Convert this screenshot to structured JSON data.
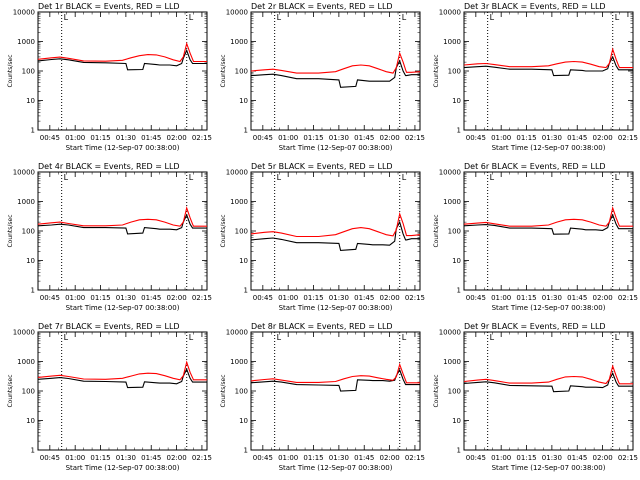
{
  "colors": {
    "events": "#000000",
    "lld": "#ff0000",
    "background": "#ffffff"
  },
  "x_tick_labels": [
    "00:45",
    "01:00",
    "01:15",
    "01:30",
    "01:45",
    "02:00",
    "02:15"
  ],
  "y_tick_labels": [
    "1",
    "10",
    "100",
    "1000",
    "10000"
  ],
  "xlabel": "Start Time (12-Sep-07 00:38:00)",
  "ylabel": "Counts/sec",
  "marker_label": "L",
  "chart_data": [
    {
      "type": "line",
      "title": "Det 1r BLACK = Events, RED = LLD",
      "ylim": [
        1,
        10000
      ],
      "log_y": true,
      "x_unit": "minutes after 00:38:00",
      "xlim": [
        0,
        100
      ],
      "vlines": [
        14,
        88
      ],
      "series": [
        {
          "name": "Events",
          "color": "#000000",
          "x": [
            0,
            8,
            13,
            18,
            27,
            40,
            52,
            53,
            62,
            63,
            70,
            72,
            78,
            82,
            85,
            86,
            88,
            90,
            91.5,
            92,
            95,
            100
          ],
          "y": [
            220,
            245,
            260,
            240,
            195,
            190,
            180,
            110,
            112,
            180,
            165,
            160,
            160,
            150,
            180,
            270,
            500,
            240,
            180,
            180,
            180,
            180
          ]
        },
        {
          "name": "LLD",
          "color": "#ff0000",
          "x": [
            0,
            8,
            13,
            18,
            27,
            40,
            50,
            55,
            60,
            65,
            70,
            75,
            80,
            84,
            86,
            88,
            90,
            91.5,
            92,
            95,
            100
          ],
          "y": [
            250,
            280,
            295,
            270,
            220,
            215,
            230,
            280,
            330,
            360,
            350,
            300,
            240,
            210,
            300,
            850,
            400,
            250,
            210,
            210,
            210
          ]
        }
      ]
    },
    {
      "type": "line",
      "title": "Det 2r BLACK = Events, RED = LLD",
      "ylim": [
        1,
        10000
      ],
      "log_y": true,
      "x_unit": "minutes after 00:38:00",
      "xlim": [
        0,
        100
      ],
      "vlines": [
        14,
        88
      ],
      "series": [
        {
          "name": "Events",
          "color": "#000000",
          "x": [
            0,
            8,
            13,
            18,
            27,
            40,
            52,
            53,
            62,
            63,
            70,
            72,
            78,
            82,
            85,
            86,
            88,
            90,
            91.5,
            92,
            95,
            100
          ],
          "y": [
            70,
            75,
            78,
            70,
            55,
            55,
            50,
            28,
            30,
            50,
            45,
            45,
            45,
            45,
            60,
            130,
            220,
            100,
            70,
            70,
            75,
            75
          ]
        },
        {
          "name": "LLD",
          "color": "#ff0000",
          "x": [
            0,
            8,
            13,
            18,
            27,
            40,
            50,
            55,
            60,
            65,
            70,
            75,
            80,
            84,
            86,
            88,
            90,
            91.5,
            92,
            95,
            100
          ],
          "y": [
            100,
            110,
            115,
            105,
            85,
            85,
            95,
            120,
            150,
            160,
            150,
            120,
            95,
            85,
            130,
            400,
            200,
            110,
            90,
            90,
            95
          ]
        }
      ]
    },
    {
      "type": "line",
      "title": "Det 3r BLACK = Events, RED = LLD",
      "ylim": [
        1,
        10000
      ],
      "log_y": true,
      "x_unit": "minutes after 00:38:00",
      "xlim": [
        0,
        100
      ],
      "vlines": [
        14,
        88
      ],
      "series": [
        {
          "name": "Events",
          "color": "#000000",
          "x": [
            0,
            8,
            13,
            18,
            27,
            40,
            52,
            53,
            62,
            63,
            70,
            72,
            78,
            82,
            85,
            86,
            88,
            90,
            91.5,
            92,
            95,
            100
          ],
          "y": [
            130,
            140,
            145,
            135,
            115,
            115,
            110,
            70,
            72,
            110,
            105,
            100,
            100,
            100,
            120,
            180,
            300,
            150,
            110,
            110,
            110,
            110
          ]
        },
        {
          "name": "LLD",
          "color": "#ff0000",
          "x": [
            0,
            8,
            13,
            18,
            27,
            40,
            50,
            55,
            60,
            65,
            70,
            75,
            80,
            84,
            86,
            88,
            90,
            91.5,
            92,
            95,
            100
          ],
          "y": [
            160,
            175,
            180,
            165,
            140,
            140,
            150,
            175,
            200,
            210,
            200,
            170,
            140,
            130,
            180,
            550,
            250,
            150,
            130,
            130,
            130
          ]
        }
      ]
    },
    {
      "type": "line",
      "title": "Det 4r BLACK = Events, RED = LLD",
      "ylim": [
        1,
        10000
      ],
      "log_y": true,
      "x_unit": "minutes after 00:38:00",
      "xlim": [
        0,
        100
      ],
      "vlines": [
        14,
        88
      ],
      "series": [
        {
          "name": "Events",
          "color": "#000000",
          "x": [
            0,
            8,
            13,
            18,
            27,
            40,
            52,
            53,
            62,
            63,
            70,
            72,
            78,
            82,
            85,
            86,
            88,
            90,
            91.5,
            92,
            95,
            100
          ],
          "y": [
            150,
            160,
            170,
            160,
            130,
            130,
            125,
            80,
            85,
            130,
            120,
            115,
            115,
            110,
            130,
            200,
            350,
            170,
            125,
            125,
            125,
            125
          ]
        },
        {
          "name": "LLD",
          "color": "#ff0000",
          "x": [
            0,
            8,
            13,
            18,
            27,
            40,
            50,
            55,
            60,
            65,
            70,
            75,
            80,
            84,
            86,
            88,
            90,
            91.5,
            92,
            95,
            100
          ],
          "y": [
            170,
            190,
            200,
            180,
            150,
            150,
            160,
            200,
            240,
            250,
            240,
            200,
            160,
            145,
            200,
            600,
            280,
            170,
            145,
            145,
            145
          ]
        }
      ]
    },
    {
      "type": "line",
      "title": "Det 5r BLACK = Events, RED = LLD",
      "ylim": [
        1,
        10000
      ],
      "log_y": true,
      "x_unit": "minutes after 00:38:00",
      "xlim": [
        0,
        100
      ],
      "vlines": [
        14,
        88
      ],
      "series": [
        {
          "name": "Events",
          "color": "#000000",
          "x": [
            0,
            8,
            13,
            18,
            27,
            40,
            52,
            53,
            62,
            63,
            70,
            72,
            78,
            82,
            85,
            86,
            88,
            90,
            91.5,
            92,
            95,
            100
          ],
          "y": [
            50,
            55,
            58,
            52,
            40,
            40,
            38,
            22,
            24,
            38,
            35,
            34,
            34,
            33,
            45,
            120,
            200,
            80,
            50,
            50,
            55,
            55
          ]
        },
        {
          "name": "LLD",
          "color": "#ff0000",
          "x": [
            0,
            8,
            13,
            18,
            27,
            40,
            50,
            55,
            60,
            65,
            70,
            75,
            80,
            84,
            86,
            88,
            90,
            91.5,
            92,
            95,
            100
          ],
          "y": [
            80,
            90,
            95,
            85,
            65,
            65,
            75,
            95,
            120,
            130,
            120,
            95,
            75,
            68,
            110,
            380,
            180,
            90,
            70,
            70,
            75
          ]
        }
      ]
    },
    {
      "type": "line",
      "title": "Det 6r BLACK = Events, RED = LLD",
      "ylim": [
        1,
        10000
      ],
      "log_y": true,
      "x_unit": "minutes after 00:38:00",
      "xlim": [
        0,
        100
      ],
      "vlines": [
        14,
        88
      ],
      "series": [
        {
          "name": "Events",
          "color": "#000000",
          "x": [
            0,
            8,
            13,
            18,
            27,
            40,
            52,
            53,
            62,
            63,
            70,
            72,
            78,
            82,
            85,
            86,
            88,
            90,
            91.5,
            92,
            95,
            100
          ],
          "y": [
            150,
            160,
            165,
            155,
            125,
            125,
            120,
            78,
            80,
            125,
            115,
            110,
            110,
            105,
            130,
            200,
            350,
            170,
            120,
            120,
            120,
            120
          ]
        },
        {
          "name": "LLD",
          "color": "#ff0000",
          "x": [
            0,
            8,
            13,
            18,
            27,
            40,
            50,
            55,
            60,
            65,
            70,
            75,
            80,
            84,
            86,
            88,
            90,
            91.5,
            92,
            95,
            100
          ],
          "y": [
            170,
            185,
            195,
            175,
            145,
            145,
            160,
            200,
            240,
            250,
            240,
            200,
            160,
            145,
            200,
            600,
            280,
            170,
            145,
            145,
            145
          ]
        }
      ]
    },
    {
      "type": "line",
      "title": "Det 7r BLACK = Events, RED = LLD",
      "ylim": [
        1,
        10000
      ],
      "log_y": true,
      "x_unit": "minutes after 00:38:00",
      "xlim": [
        0,
        100
      ],
      "vlines": [
        14,
        88
      ],
      "series": [
        {
          "name": "Events",
          "color": "#000000",
          "x": [
            0,
            8,
            13,
            18,
            27,
            40,
            52,
            53,
            62,
            63,
            70,
            72,
            78,
            82,
            85,
            86,
            88,
            90,
            91.5,
            92,
            95,
            100
          ],
          "y": [
            250,
            270,
            285,
            265,
            215,
            210,
            200,
            130,
            135,
            205,
            190,
            185,
            185,
            175,
            210,
            320,
            550,
            270,
            200,
            200,
            200,
            200
          ]
        },
        {
          "name": "LLD",
          "color": "#ff0000",
          "x": [
            0,
            8,
            13,
            18,
            27,
            40,
            50,
            55,
            60,
            65,
            70,
            75,
            80,
            84,
            86,
            88,
            90,
            91.5,
            92,
            95,
            100
          ],
          "y": [
            290,
            320,
            340,
            310,
            255,
            250,
            270,
            320,
            380,
            400,
            390,
            330,
            270,
            240,
            330,
            950,
            430,
            280,
            240,
            240,
            240
          ]
        }
      ]
    },
    {
      "type": "line",
      "title": "Det 8r BLACK = Events, RED = LLD",
      "ylim": [
        1,
        10000
      ],
      "log_y": true,
      "x_unit": "minutes after 00:38:00",
      "xlim": [
        0,
        100
      ],
      "vlines": [
        14,
        88
      ],
      "series": [
        {
          "name": "Events",
          "color": "#000000",
          "x": [
            0,
            8,
            13,
            18,
            27,
            40,
            52,
            53,
            62,
            63,
            70,
            72,
            78,
            82,
            85,
            86,
            88,
            90,
            91.5,
            92,
            95,
            100
          ],
          "y": [
            190,
            205,
            215,
            200,
            165,
            160,
            155,
            100,
            105,
            240,
            230,
            225,
            225,
            215,
            230,
            330,
            520,
            250,
            165,
            165,
            165,
            165
          ]
        },
        {
          "name": "LLD",
          "color": "#ff0000",
          "x": [
            0,
            8,
            13,
            18,
            27,
            40,
            50,
            55,
            60,
            65,
            70,
            75,
            80,
            84,
            86,
            88,
            90,
            91.5,
            92,
            95,
            100
          ],
          "y": [
            220,
            245,
            260,
            235,
            195,
            195,
            210,
            260,
            310,
            330,
            320,
            280,
            250,
            230,
            300,
            800,
            380,
            230,
            190,
            190,
            190
          ]
        }
      ]
    },
    {
      "type": "line",
      "title": "Det 9r BLACK = Events, RED = LLD",
      "ylim": [
        1,
        10000
      ],
      "log_y": true,
      "x_unit": "minutes after 00:38:00",
      "xlim": [
        0,
        100
      ],
      "vlines": [
        14,
        88
      ],
      "series": [
        {
          "name": "Events",
          "color": "#000000",
          "x": [
            0,
            8,
            13,
            18,
            27,
            40,
            52,
            53,
            62,
            63,
            70,
            72,
            78,
            82,
            85,
            86,
            88,
            90,
            91.5,
            92,
            95,
            100
          ],
          "y": [
            180,
            195,
            205,
            190,
            155,
            150,
            145,
            95,
            100,
            150,
            140,
            135,
            135,
            130,
            160,
            240,
            400,
            200,
            145,
            145,
            145,
            145
          ]
        },
        {
          "name": "LLD",
          "color": "#ff0000",
          "x": [
            0,
            8,
            13,
            18,
            27,
            40,
            50,
            55,
            60,
            65,
            70,
            75,
            80,
            84,
            86,
            88,
            90,
            91.5,
            92,
            95,
            100
          ],
          "y": [
            210,
            235,
            250,
            225,
            185,
            185,
            200,
            250,
            300,
            310,
            300,
            250,
            200,
            180,
            250,
            700,
            330,
            200,
            175,
            175,
            175
          ]
        }
      ]
    }
  ]
}
